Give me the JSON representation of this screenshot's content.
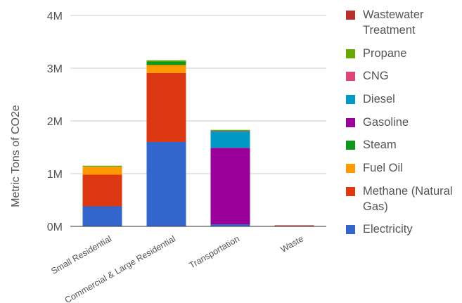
{
  "chart_data": {
    "type": "bar",
    "stacked": true,
    "ylabel": "Metric Tons of CO2e",
    "xlabel": "",
    "ylim": [
      0,
      4000000
    ],
    "yticks": [
      {
        "value": 0,
        "label": "0M"
      },
      {
        "value": 1000000,
        "label": "1M"
      },
      {
        "value": 2000000,
        "label": "2M"
      },
      {
        "value": 3000000,
        "label": "3M"
      },
      {
        "value": 4000000,
        "label": "4M"
      }
    ],
    "categories": [
      "Small Residential",
      "Commercial & Large Residential",
      "Transportation",
      "Waste"
    ],
    "grid": true,
    "legend_position": "right",
    "series": [
      {
        "name": "Electricity",
        "color": "#3366cc",
        "values": [
          380000,
          1600000,
          40000,
          0
        ]
      },
      {
        "name": "Methane (Natural Gas)",
        "color": "#dc3912",
        "values": [
          600000,
          1310000,
          0,
          0
        ]
      },
      {
        "name": "Fuel Oil",
        "color": "#ff9900",
        "values": [
          150000,
          150000,
          0,
          0
        ]
      },
      {
        "name": "Steam",
        "color": "#109618",
        "values": [
          0,
          70000,
          0,
          0
        ]
      },
      {
        "name": "Gasoline",
        "color": "#990099",
        "values": [
          0,
          0,
          1450000,
          0
        ]
      },
      {
        "name": "Diesel",
        "color": "#0099c6",
        "values": [
          0,
          0,
          310000,
          0
        ]
      },
      {
        "name": "CNG",
        "color": "#dd4477",
        "values": [
          0,
          0,
          10000,
          0
        ]
      },
      {
        "name": "Propane",
        "color": "#66aa00",
        "values": [
          20000,
          20000,
          10000,
          0
        ]
      },
      {
        "name": "Wastewater Treatment",
        "color": "#b82e2e",
        "values": [
          0,
          0,
          0,
          12000
        ]
      }
    ],
    "legend": [
      {
        "label_lines": [
          "Wastewater",
          "Treatment"
        ],
        "color": "#b82e2e"
      },
      {
        "label_lines": [
          "Propane"
        ],
        "color": "#66aa00"
      },
      {
        "label_lines": [
          "CNG"
        ],
        "color": "#dd4477"
      },
      {
        "label_lines": [
          "Diesel"
        ],
        "color": "#0099c6"
      },
      {
        "label_lines": [
          "Gasoline"
        ],
        "color": "#990099"
      },
      {
        "label_lines": [
          "Steam"
        ],
        "color": "#109618"
      },
      {
        "label_lines": [
          "Fuel Oil"
        ],
        "color": "#ff9900"
      },
      {
        "label_lines": [
          "Methane (Natural",
          "Gas)"
        ],
        "color": "#dc3912"
      },
      {
        "label_lines": [
          "Electricity"
        ],
        "color": "#3366cc"
      }
    ]
  }
}
